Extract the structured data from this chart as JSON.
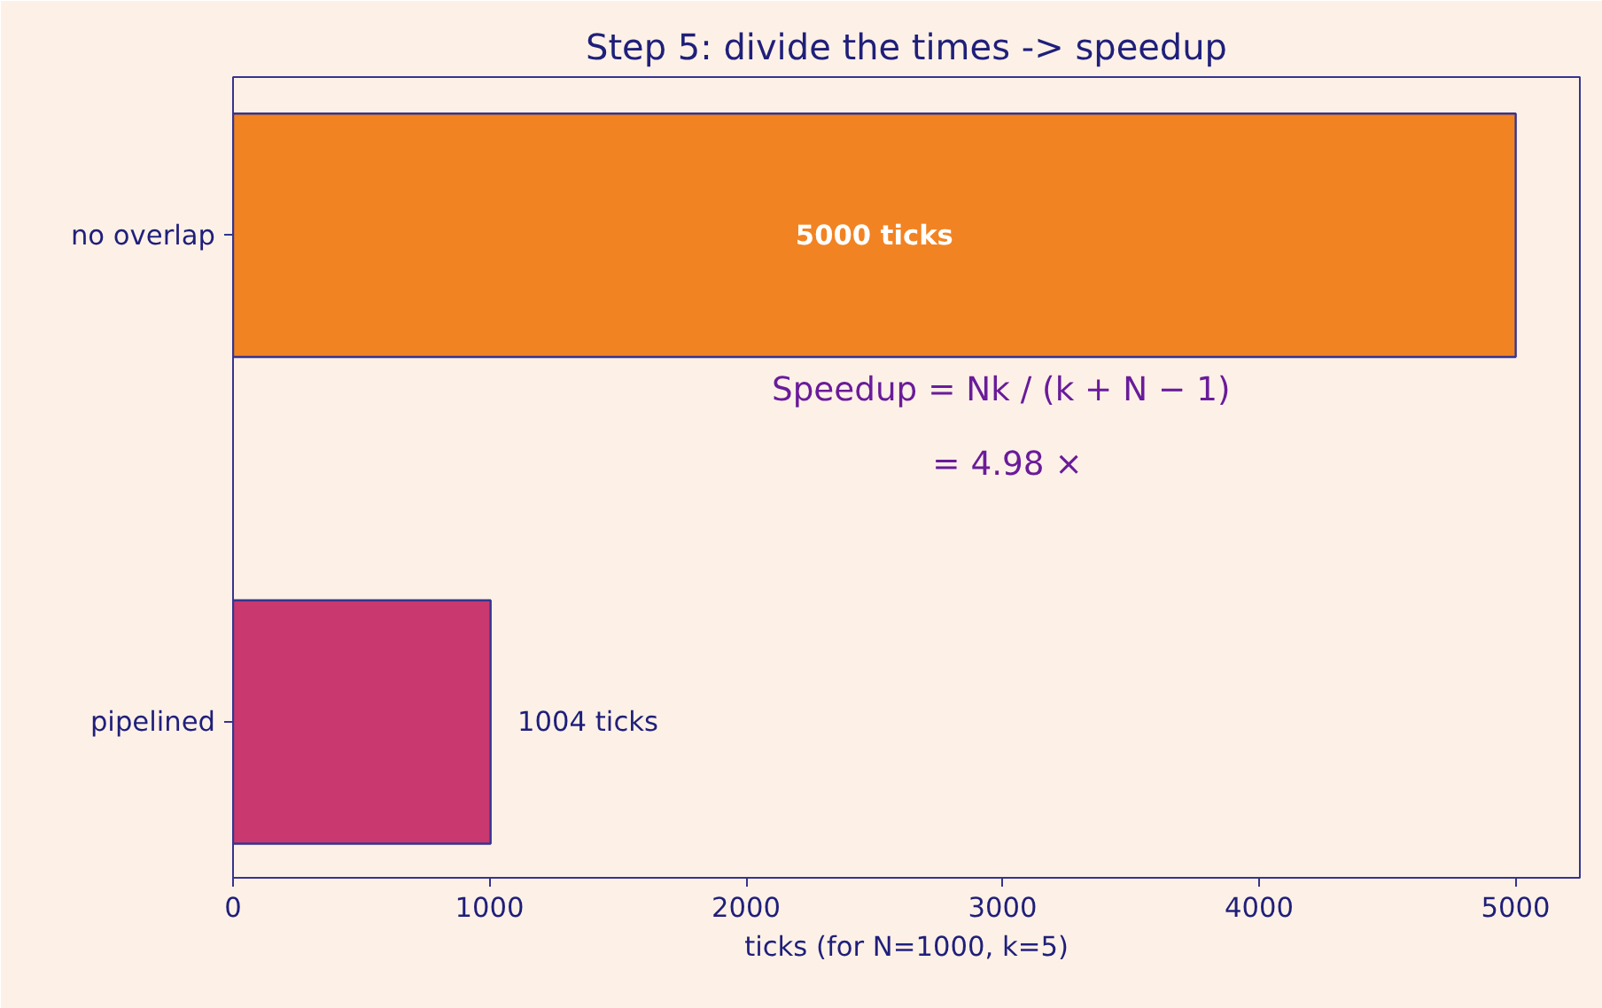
{
  "chart_data": {
    "type": "bar",
    "orientation": "horizontal",
    "title": "Step 5: divide the times -> speedup",
    "xlabel": "ticks (for N=1000, k=5)",
    "categories": [
      "no overlap",
      "pipelined"
    ],
    "values": [
      5000,
      1004
    ],
    "colors": [
      "#f28322",
      "#c9386e"
    ],
    "value_labels": [
      "5000 ticks",
      "1004 ticks"
    ],
    "xlim": [
      0,
      5250
    ],
    "xticks": [
      0,
      1000,
      2000,
      3000,
      4000,
      5000
    ],
    "annotations": [
      "Speedup = Nk / (k + N − 1)",
      "= 4.98 ×"
    ],
    "grid": false
  }
}
